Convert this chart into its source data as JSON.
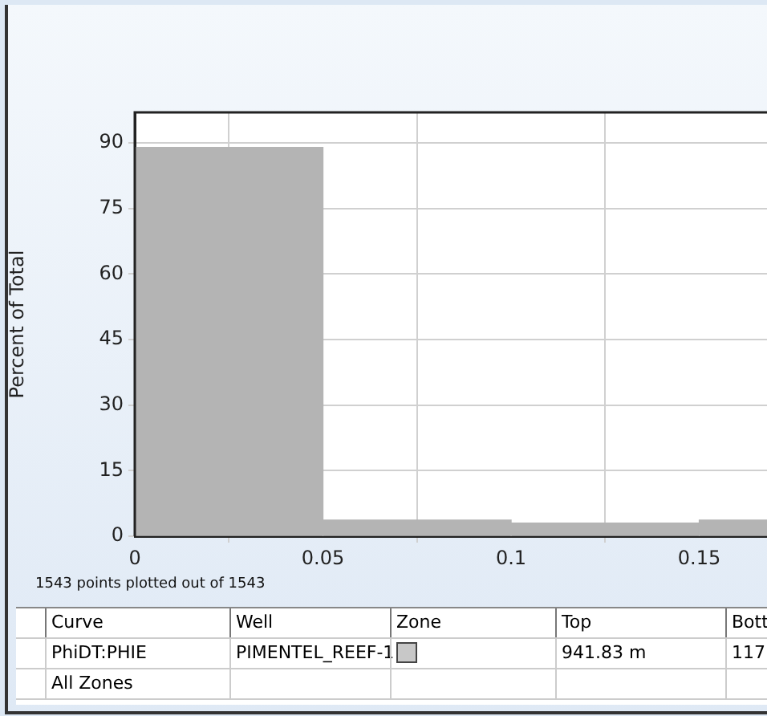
{
  "chart_data": {
    "type": "histogram",
    "ylabel": "Percent of Total",
    "bins": [
      0,
      0.05,
      0.1,
      0.15,
      0.2
    ],
    "values": [
      89,
      3.7,
      3,
      3.7
    ],
    "color": "#b4b4b4",
    "xlim": [
      0,
      0.168
    ],
    "xticks": [
      0,
      0.05,
      0.1,
      0.15
    ],
    "ylim": [
      0,
      97
    ],
    "yticks": [
      0,
      15,
      30,
      45,
      60,
      75,
      90
    ],
    "grid": true,
    "annotations": [
      "1543 points plotted out of 1543",
      "Curve",
      "Well",
      "Zone",
      "Top",
      "Bott",
      "PhiDT:PHIE",
      "PIMENTEL_REEF-1",
      "941.83 m",
      "117",
      "All Zones"
    ]
  }
}
